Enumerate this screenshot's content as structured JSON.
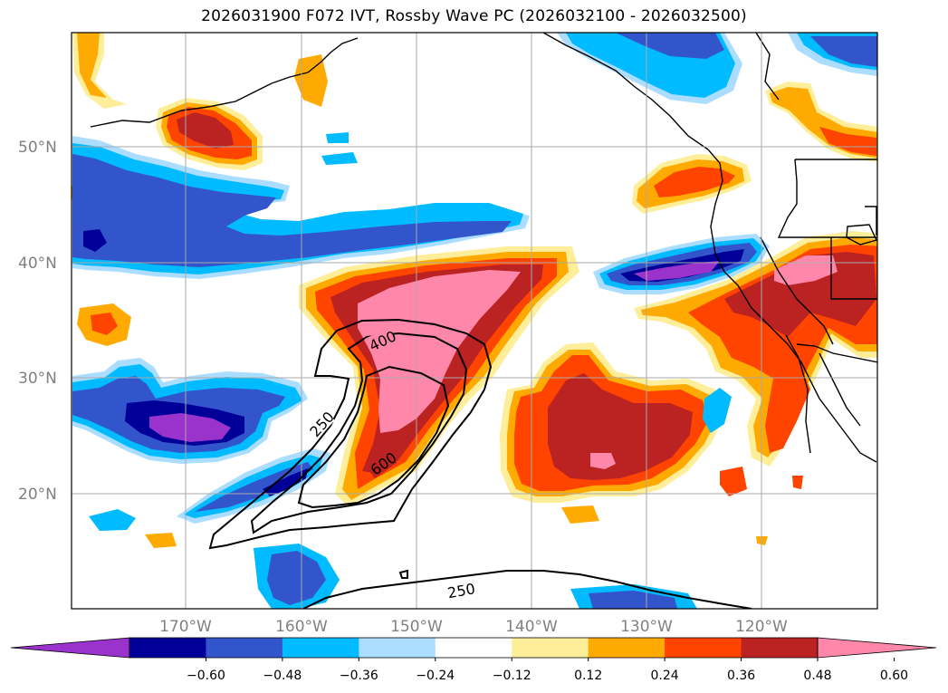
{
  "title": "2026031900 F072 IVT, Rossby Wave PC (2026032100 - 2026032500)",
  "map": {
    "lon_range": [
      -180,
      -110
    ],
    "lat_range": [
      10,
      60
    ],
    "lat_labels": [
      "50°N",
      "40°N",
      "30°N",
      "20°N"
    ],
    "lon_labels": [
      "170°W",
      "160°W",
      "150°W",
      "140°W",
      "130°W",
      "120°W"
    ]
  },
  "contours": {
    "labels": [
      "400",
      "250",
      "600",
      "250"
    ],
    "line_color": "#000000"
  },
  "colorbar": {
    "colors": [
      "#9933cc",
      "#000099",
      "#3355cc",
      "#00bbff",
      "#aaddff",
      "#ffffff",
      "#ffee99",
      "#ffaa00",
      "#ff4400",
      "#bb2222",
      "#ff88aa"
    ],
    "labels": [
      "−0.60",
      "−0.48",
      "−0.36",
      "−0.24",
      "−0.12",
      "0.12",
      "0.24",
      "0.36",
      "0.48",
      "0.60"
    ]
  }
}
